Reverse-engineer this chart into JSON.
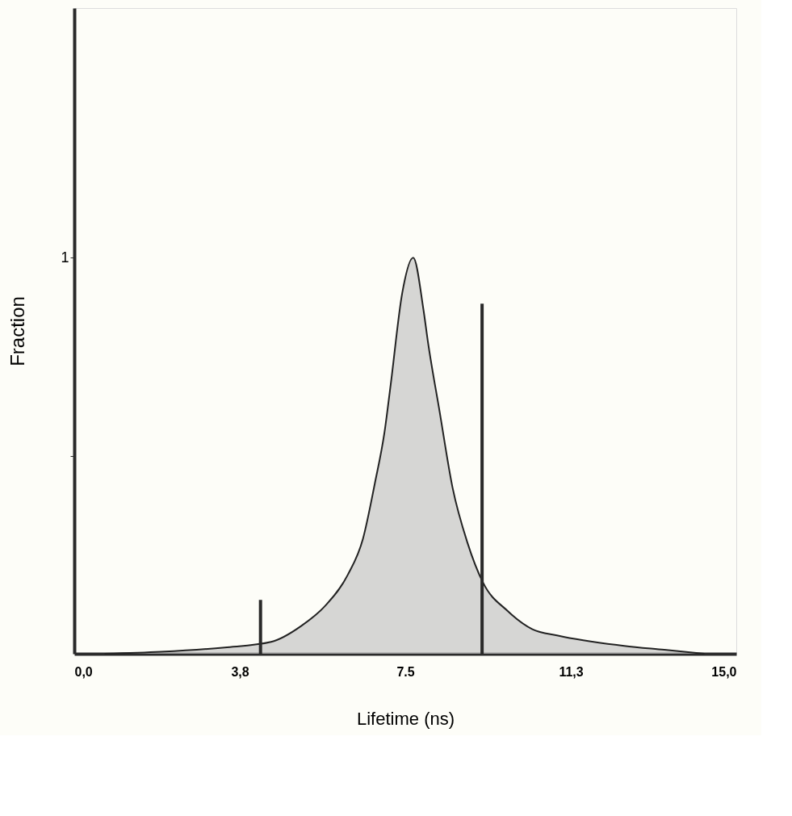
{
  "chart_data": {
    "type": "area",
    "xlabel": "Lifetime (ns)",
    "ylabel": "Fraction",
    "xlim": [
      0,
      15
    ],
    "ylim": [
      0,
      1.63
    ],
    "xticks": [
      {
        "value": 0,
        "label": "0,0"
      },
      {
        "value": 3.75,
        "label": "3,8"
      },
      {
        "value": 7.5,
        "label": "7.5"
      },
      {
        "value": 11.25,
        "label": "11,3"
      },
      {
        "value": 15,
        "label": "15,0"
      }
    ],
    "yticks": [
      {
        "value": 0.5,
        "label": null
      },
      1
    ],
    "grid": false,
    "series": [
      {
        "color": "#c4c4c4",
        "x": [
          0.69,
          1.96,
          3.41,
          4.46,
          5.14,
          5.71,
          6.2,
          6.54,
          6.81,
          7.03,
          7.17,
          7.43,
          7.68,
          7.91,
          8.01,
          8.28,
          8.57,
          8.91,
          9.26,
          9.82,
          10.38,
          10.96,
          12.46,
          13.37,
          14.28
        ],
        "values": [
          0,
          0.005,
          0.016,
          0.03,
          0.07,
          0.124,
          0.2,
          0.29,
          0.43,
          0.56,
          0.68,
          0.91,
          1.0,
          0.87,
          0.79,
          0.61,
          0.42,
          0.28,
          0.18,
          0.108,
          0.062,
          0.046,
          0.02,
          0.01,
          0
        ]
      },
      {
        "type": "bar",
        "color": "#2a2a2a",
        "x": [
          4.22,
          9.24
        ],
        "values": [
          0.136,
          0.884
        ]
      }
    ]
  }
}
